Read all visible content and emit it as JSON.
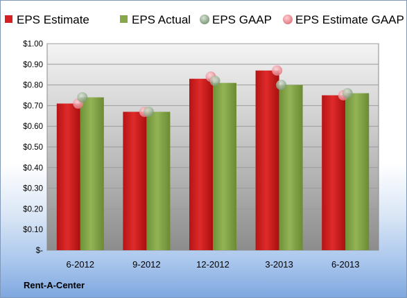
{
  "company": "Rent-A-Center",
  "colors": {
    "estimate": "#d42020",
    "actual": "#86a84a",
    "gaap": "#8fa88a",
    "estimate_gaap": "#e8888e",
    "plot_bg_top": "#ffffff",
    "plot_bg_bottom": "#8c8c8c"
  },
  "chart_data": {
    "type": "bar",
    "title": "",
    "xlabel": "",
    "ylabel": "",
    "ylim": [
      0,
      1.0
    ],
    "yticks": [
      0,
      0.1,
      0.2,
      0.3,
      0.4,
      0.5,
      0.6,
      0.7,
      0.8,
      0.9,
      1.0
    ],
    "ytick_labels": [
      "$-",
      "$0.10",
      "$0.20",
      "$0.30",
      "$0.40",
      "$0.50",
      "$0.60",
      "$0.70",
      "$0.80",
      "$0.90",
      "$1.00"
    ],
    "categories": [
      "6-2012",
      "9-2012",
      "12-2012",
      "3-2013",
      "6-2013"
    ],
    "legend_position": "top",
    "grid": true,
    "series": [
      {
        "name": "EPS Estimate",
        "kind": "bar",
        "values": [
          0.71,
          0.67,
          0.83,
          0.87,
          0.75
        ]
      },
      {
        "name": "EPS Actual",
        "kind": "bar",
        "values": [
          0.74,
          0.67,
          0.81,
          0.8,
          0.76
        ]
      },
      {
        "name": "EPS GAAP",
        "kind": "marker",
        "values": [
          0.74,
          0.67,
          0.82,
          0.8,
          0.76
        ]
      },
      {
        "name": "EPS Estimate GAAP",
        "kind": "marker",
        "values": [
          0.71,
          0.67,
          0.84,
          0.87,
          0.75
        ]
      }
    ]
  }
}
